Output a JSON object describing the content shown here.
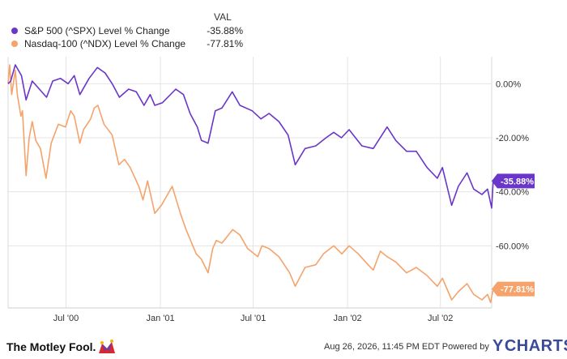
{
  "legend": {
    "val_header": "VAL",
    "items": [
      {
        "label": "S&P 500 (^SPX) Level % Change",
        "value": "-35.88%",
        "color": "#6a36c9"
      },
      {
        "label": "Nasdaq-100 (^NDX) Level % Change",
        "value": "-77.81%",
        "color": "#f5a36b"
      }
    ]
  },
  "chart_data": {
    "type": "line",
    "x_tick_labels": [
      "Jul '00",
      "Jan '01",
      "Jul '01",
      "Jan '02",
      "Jul '02"
    ],
    "x_ticks": [
      "2000-07-01",
      "2001-01-01",
      "2001-07-01",
      "2002-01-01",
      "2002-07-01"
    ],
    "x_range": [
      "2000-03-10",
      "2002-10-09"
    ],
    "y_tick_labels": [
      "0.00%",
      "-20.00%",
      "-40.00%",
      "-60.00%"
    ],
    "y_ticks": [
      0,
      -20,
      -40,
      -60
    ],
    "ylim": [
      -83,
      10
    ],
    "grid": true,
    "series": [
      {
        "name": "S&P 500 (^SPX) Level % Change",
        "color": "#6a36c9",
        "end_label": "-35.88%",
        "points": [
          [
            "2000-03-10",
            0
          ],
          [
            "2000-03-15",
            1
          ],
          [
            "2000-03-24",
            7
          ],
          [
            "2000-04-05",
            3
          ],
          [
            "2000-04-14",
            -6
          ],
          [
            "2000-04-26",
            1
          ],
          [
            "2000-05-10",
            -2
          ],
          [
            "2000-05-24",
            -5
          ],
          [
            "2000-06-05",
            1
          ],
          [
            "2000-06-20",
            2
          ],
          [
            "2000-07-05",
            0
          ],
          [
            "2000-07-17",
            3
          ],
          [
            "2000-07-28",
            -4
          ],
          [
            "2000-08-15",
            2
          ],
          [
            "2000-08-31",
            6
          ],
          [
            "2000-09-15",
            4
          ],
          [
            "2000-09-29",
            0
          ],
          [
            "2000-10-13",
            -5
          ],
          [
            "2000-10-31",
            -2
          ],
          [
            "2000-11-15",
            -3
          ],
          [
            "2000-11-30",
            -8
          ],
          [
            "2000-12-12",
            -4
          ],
          [
            "2000-12-21",
            -8
          ],
          [
            "2001-01-05",
            -7
          ],
          [
            "2001-01-31",
            -2
          ],
          [
            "2001-02-15",
            -4
          ],
          [
            "2001-02-28",
            -11
          ],
          [
            "2001-03-14",
            -16
          ],
          [
            "2001-03-22",
            -21
          ],
          [
            "2001-04-04",
            -22
          ],
          [
            "2001-04-18",
            -10
          ],
          [
            "2001-05-01",
            -9
          ],
          [
            "2001-05-21",
            -3
          ],
          [
            "2001-06-05",
            -8
          ],
          [
            "2001-06-29",
            -10
          ],
          [
            "2001-07-16",
            -13
          ],
          [
            "2001-08-01",
            -11
          ],
          [
            "2001-08-20",
            -14
          ],
          [
            "2001-09-07",
            -19
          ],
          [
            "2001-09-21",
            -30
          ],
          [
            "2001-10-10",
            -24
          ],
          [
            "2001-10-31",
            -23
          ],
          [
            "2001-11-20",
            -20
          ],
          [
            "2001-12-05",
            -18
          ],
          [
            "2001-12-20",
            -20
          ],
          [
            "2002-01-04",
            -17
          ],
          [
            "2002-01-29",
            -23
          ],
          [
            "2002-02-20",
            -24
          ],
          [
            "2002-03-19",
            -16
          ],
          [
            "2002-04-05",
            -21
          ],
          [
            "2002-04-26",
            -25
          ],
          [
            "2002-05-15",
            -25
          ],
          [
            "2002-06-05",
            -31
          ],
          [
            "2002-06-25",
            -35
          ],
          [
            "2002-07-05",
            -31
          ],
          [
            "2002-07-23",
            -45
          ],
          [
            "2002-08-05",
            -38
          ],
          [
            "2002-08-22",
            -33
          ],
          [
            "2002-09-04",
            -39
          ],
          [
            "2002-09-20",
            -41
          ],
          [
            "2002-10-01",
            -39
          ],
          [
            "2002-10-09",
            -46
          ],
          [
            "2002-10-12",
            -36
          ]
        ]
      },
      {
        "name": "Nasdaq-100 (^NDX) Level % Change",
        "color": "#f5a36b",
        "end_label": "-77.81%",
        "points": [
          [
            "2000-03-10",
            0
          ],
          [
            "2000-03-13",
            7
          ],
          [
            "2000-03-17",
            -4
          ],
          [
            "2000-03-24",
            5
          ],
          [
            "2000-03-28",
            -4
          ],
          [
            "2000-04-04",
            -12
          ],
          [
            "2000-04-07",
            -10
          ],
          [
            "2000-04-14",
            -34
          ],
          [
            "2000-04-20",
            -20
          ],
          [
            "2000-04-26",
            -14
          ],
          [
            "2000-05-03",
            -21
          ],
          [
            "2000-05-12",
            -24
          ],
          [
            "2000-05-23",
            -35
          ],
          [
            "2000-06-02",
            -22
          ],
          [
            "2000-06-16",
            -15
          ],
          [
            "2000-06-30",
            -16
          ],
          [
            "2000-07-10",
            -10
          ],
          [
            "2000-07-17",
            -12
          ],
          [
            "2000-07-28",
            -22
          ],
          [
            "2000-08-04",
            -17
          ],
          [
            "2000-08-18",
            -13
          ],
          [
            "2000-08-25",
            -9
          ],
          [
            "2000-09-01",
            -8
          ],
          [
            "2000-09-13",
            -15
          ],
          [
            "2000-09-29",
            -19
          ],
          [
            "2000-10-12",
            -30
          ],
          [
            "2000-10-23",
            -28
          ],
          [
            "2000-11-03",
            -31
          ],
          [
            "2000-11-20",
            -38
          ],
          [
            "2000-11-28",
            -43
          ],
          [
            "2000-12-07",
            -36
          ],
          [
            "2000-12-21",
            -48
          ],
          [
            "2001-01-03",
            -45
          ],
          [
            "2001-01-24",
            -38
          ],
          [
            "2001-02-09",
            -48
          ],
          [
            "2001-02-20",
            -54
          ],
          [
            "2001-03-12",
            -63
          ],
          [
            "2001-03-22",
            -65
          ],
          [
            "2001-04-04",
            -70
          ],
          [
            "2001-04-13",
            -61
          ],
          [
            "2001-04-20",
            -58
          ],
          [
            "2001-05-01",
            -59
          ],
          [
            "2001-05-22",
            -54
          ],
          [
            "2001-06-05",
            -56
          ],
          [
            "2001-06-20",
            -61
          ],
          [
            "2001-07-10",
            -64
          ],
          [
            "2001-07-18",
            -60
          ],
          [
            "2001-08-01",
            -61
          ],
          [
            "2001-08-20",
            -64
          ],
          [
            "2001-09-10",
            -70
          ],
          [
            "2001-09-21",
            -75
          ],
          [
            "2001-10-10",
            -68
          ],
          [
            "2001-10-31",
            -67
          ],
          [
            "2001-11-15",
            -63
          ],
          [
            "2001-12-05",
            -60
          ],
          [
            "2001-12-21",
            -63
          ],
          [
            "2002-01-04",
            -60
          ],
          [
            "2002-01-22",
            -63
          ],
          [
            "2002-02-05",
            -66
          ],
          [
            "2002-02-20",
            -69
          ],
          [
            "2002-03-06",
            -62
          ],
          [
            "2002-03-19",
            -64
          ],
          [
            "2002-04-05",
            -66
          ],
          [
            "2002-04-26",
            -70
          ],
          [
            "2002-05-15",
            -68
          ],
          [
            "2002-06-05",
            -71
          ],
          [
            "2002-06-25",
            -75
          ],
          [
            "2002-07-05",
            -72
          ],
          [
            "2002-07-23",
            -80
          ],
          [
            "2002-08-05",
            -77
          ],
          [
            "2002-08-22",
            -74
          ],
          [
            "2002-09-04",
            -78
          ],
          [
            "2002-09-20",
            -80
          ],
          [
            "2002-10-01",
            -78
          ],
          [
            "2002-10-07",
            -81
          ],
          [
            "2002-10-12",
            -76
          ]
        ]
      }
    ]
  },
  "footer": {
    "brand_left": "The Motley Fool.",
    "timestamp": "Aug 26, 2026, 11:45 PM EDT Powered by",
    "brand_right": "CHARTS",
    "brand_right_mark": "Y"
  }
}
